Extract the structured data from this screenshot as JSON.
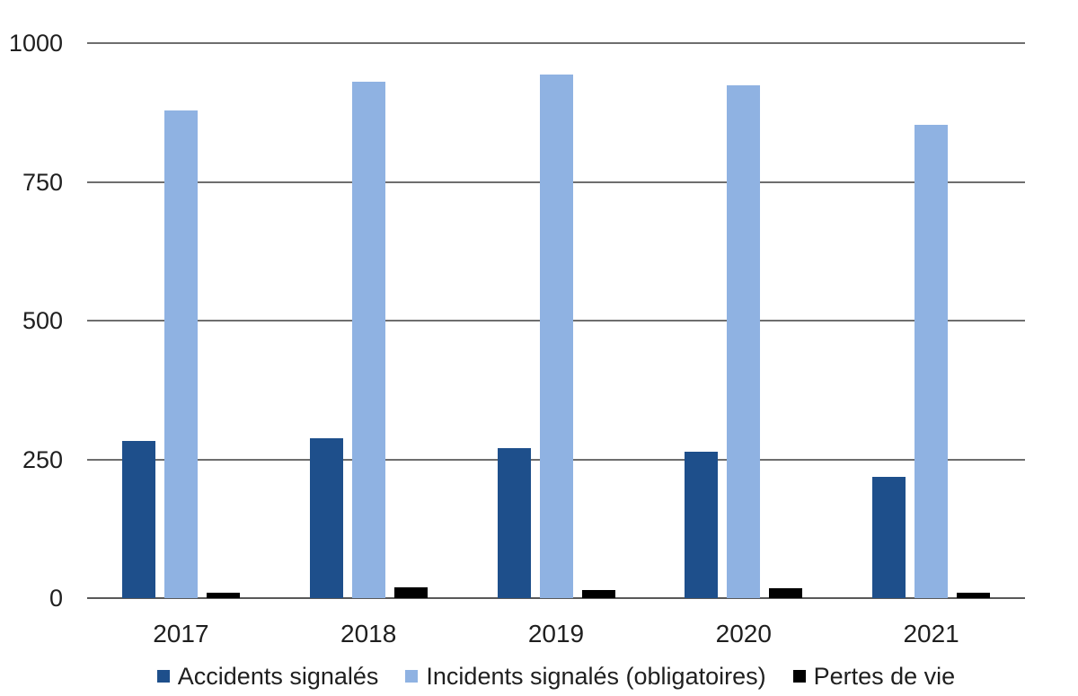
{
  "chart_data": {
    "type": "bar",
    "title": "",
    "xlabel": "",
    "ylabel": "",
    "categories": [
      "2017",
      "2018",
      "2019",
      "2020",
      "2021"
    ],
    "series": [
      {
        "name": "Accidents signalés",
        "color": "#1E4F8B",
        "values": [
          283,
          288,
          270,
          263,
          218
        ]
      },
      {
        "name": "Incidents signalés (obligatoires)",
        "color": "#8FB2E2",
        "values": [
          878,
          930,
          944,
          924,
          853
        ]
      },
      {
        "name": "Pertes de vie",
        "color": "#000000",
        "values": [
          10,
          20,
          15,
          18,
          10
        ]
      }
    ],
    "ylim": [
      0,
      1000
    ],
    "yticks": [
      0,
      250,
      500,
      750,
      1000
    ],
    "grid": true,
    "legend_position": "bottom",
    "gridline_color": "#6e6e6e",
    "text_color": "#1f1f1f",
    "background_color": "#ffffff"
  }
}
